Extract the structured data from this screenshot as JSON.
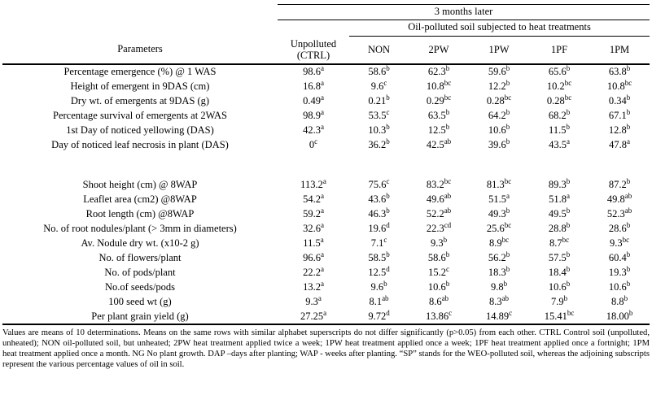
{
  "table": {
    "header": {
      "span_top": "3 months later",
      "span_sub": "Oil-polluted soil subjected to heat treatments",
      "param_col": "Parameters",
      "ctrl_line1": "Unpolluted",
      "ctrl_line2": "(CTRL)",
      "treatment_cols": [
        "NON",
        "2PW",
        "1PW",
        "1PF",
        "1PM"
      ]
    },
    "rows": [
      {
        "param": "Percentage emergence (%) @ 1 WAS",
        "values": [
          "98.6^a",
          "58.6^b",
          "62.3^b",
          "59.6^b",
          "65.6^b",
          "63.8^b"
        ]
      },
      {
        "param": "Height of emergent in 9DAS (cm)",
        "values": [
          "16.8^a",
          "9.6^c",
          "10.8^bc",
          "12.2^b",
          "10.2^bc",
          "10.8^bc"
        ]
      },
      {
        "param": "Dry wt. of emergents at 9DAS (g)",
        "values": [
          "0.49^a",
          "0.21^b",
          "0.29^bc",
          "0.28^bc",
          "0.28^bc",
          "0.34^b"
        ]
      },
      {
        "param": "Percentage survival of emergents at 2WAS",
        "values": [
          "98.9^a",
          "53.5^c",
          "63.5^b",
          "64.2^b",
          "68.2^b",
          "67.1^b"
        ]
      },
      {
        "param": "1st Day of noticed yellowing (DAS)",
        "values": [
          "42.3^a",
          "10.3^b",
          "12.5^b",
          "10.6^b",
          "11.5^b",
          "12.8^b"
        ]
      },
      {
        "param": "Day of noticed leaf necrosis in plant (DAS)",
        "values": [
          "0^c",
          "36.2^b",
          "42.5^ab",
          "39.6^b",
          "43.5^a",
          "47.8^a"
        ]
      },
      {
        "spacer": true
      },
      {
        "param": "Shoot height (cm) @ 8WAP",
        "values": [
          "113.2^a",
          "75.6^c",
          "83.2^bc",
          "81.3^bc",
          "89.3^b",
          "87.2^b"
        ]
      },
      {
        "param": "Leaflet area (cm2) @8WAP",
        "values": [
          "54.2^a",
          "43.6^b",
          "49.6^ab",
          "51.5^a",
          "51.8^a",
          "49.8^ab"
        ]
      },
      {
        "param": "Root length (cm) @8WAP",
        "values": [
          "59.2^a",
          "46.3^b",
          "52.2^ab",
          "49.3^b",
          "49.5^b",
          "52.3^ab"
        ]
      },
      {
        "param": "No. of root nodules/plant (> 3mm in diameters)",
        "values": [
          "32.6^a",
          "19.6^d",
          "22.3^cd",
          "25.6^bc",
          "28.8^b",
          "28.6^b"
        ]
      },
      {
        "param": "Av. Nodule dry wt. (x10-2 g)",
        "values": [
          "11.5^a",
          "7.1^c",
          "9.3^b",
          "8.9^bc",
          "8.7^bc",
          "9.3^bc"
        ]
      },
      {
        "param": "No. of flowers/plant",
        "values": [
          "96.6^a",
          "58.5^b",
          "58.6^b",
          "56.2^b",
          "57.5^b",
          "60.4^b"
        ]
      },
      {
        "param": "No. of pods/plant",
        "values": [
          "22.2^a",
          "12.5^d",
          "15.2^c",
          "18.3^b",
          "18.4^b",
          "19.3^b"
        ]
      },
      {
        "param": "No.of seeds/pods",
        "values": [
          "13.2^a",
          "9.6^b",
          "10.6^b",
          "9.8^b",
          "10.6^b",
          "10.6^b"
        ]
      },
      {
        "param": "100 seed wt (g)",
        "values": [
          "9.3^a",
          "8.1^ab",
          "8.6^ab",
          "8.3^ab",
          "7.9^b",
          "8.8^b"
        ]
      },
      {
        "param": "Per plant grain yield (g)",
        "values": [
          "27.25^a",
          "9.72^d",
          "13.86^c",
          "14.89^c",
          "15.41^bc",
          "18.00^b"
        ]
      }
    ]
  },
  "footnote": "Values are means of 10 determinations. Means on the same rows with similar alphabet superscripts do not differ significantly (p>0.05) from each other. CTRL Control soil (unpolluted, unheated);  NON oil-polluted soil, but unheated; 2PW heat treatment applied twice a week; 1PW heat treatment applied once a week; 1PF heat treatment applied once a fortnight; 1PM heat treatment applied once a month. NG No plant growth. DAP –days after planting; WAP - weeks after planting. “SP” stands for the WEO-polluted soil, whereas the adjoining subscripts represent the various percentage values of oil in soil."
}
